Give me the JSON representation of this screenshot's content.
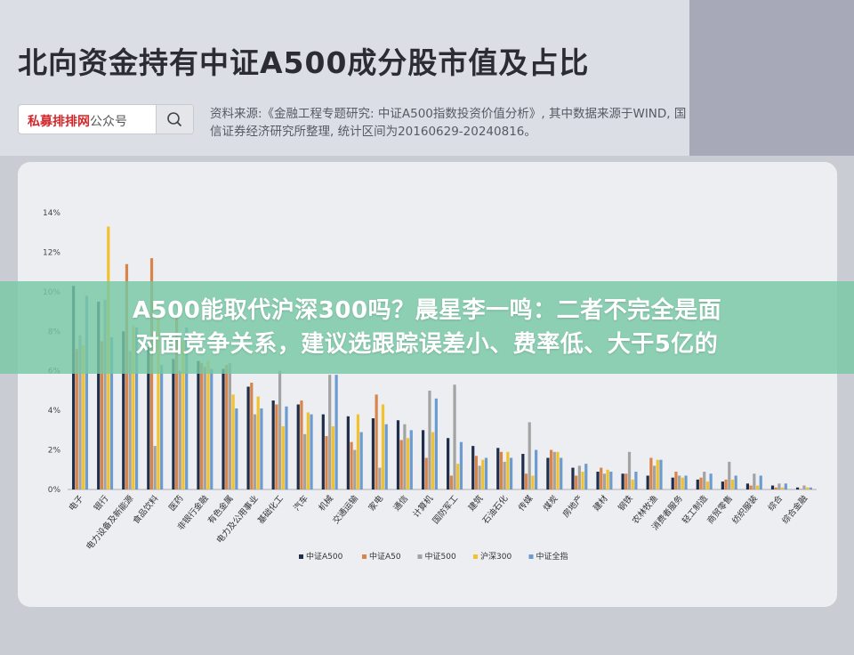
{
  "header": {
    "title": "北向资金持有中证A500成分股市值及占比",
    "search_brand": "私募排排网",
    "search_suffix": "公众号",
    "source": "资料来源:《金融工程专题研究: 中证A500指数投资价值分析》, 其中数据来源于WIND, 国信证券经济研究所整理, 统计区间为20160629-20240816。"
  },
  "banner": {
    "line1": "A500能取代沪深300吗？晨星李一鸣：二者不完全是面",
    "line2": "对面竞争关系，建议选跟踪误差小、费率低、大于5亿的"
  },
  "icons": {
    "search": "search-icon"
  },
  "colors": {
    "中证A500": "#1f2e4a",
    "中证A50": "#d9844a",
    "中证500": "#a3a3a3",
    "沪深300": "#f2c12e",
    "中证全指": "#6b9bd1"
  },
  "chart_data": {
    "type": "bar",
    "ylim": [
      0,
      14
    ],
    "yticks": [
      "0%",
      "2%",
      "4%",
      "6%",
      "8%",
      "10%",
      "12%",
      "14%"
    ],
    "grid": false,
    "legend": "bottom",
    "categories": [
      "电子",
      "银行",
      "电力设备及新能源",
      "食品饮料",
      "医药",
      "非银行金融",
      "有色金属",
      "电力及公用事业",
      "基础化工",
      "汽车",
      "机械",
      "交通运输",
      "家电",
      "通信",
      "计算机",
      "国防军工",
      "建筑",
      "石油石化",
      "传媒",
      "煤炭",
      "房地产",
      "建材",
      "钢铁",
      "农林牧渔",
      "消费者服务",
      "轻工制造",
      "商贸零售",
      "纺织服装",
      "综合",
      "综合金融"
    ],
    "series": [
      {
        "name": "中证A500",
        "values": [
          10.3,
          9.5,
          8.0,
          7.2,
          6.6,
          6.5,
          6.1,
          5.2,
          4.5,
          4.3,
          3.8,
          3.7,
          3.6,
          3.5,
          3.0,
          2.6,
          2.2,
          2.1,
          1.8,
          1.6,
          1.1,
          0.9,
          0.8,
          0.7,
          0.6,
          0.5,
          0.4,
          0.3,
          0.2,
          0.1
        ]
      },
      {
        "name": "中证A50",
        "values": [
          7.1,
          7.5,
          11.4,
          11.7,
          8.7,
          6.4,
          6.3,
          5.4,
          4.3,
          4.5,
          2.7,
          2.4,
          4.8,
          2.5,
          1.6,
          0.7,
          1.7,
          1.9,
          0.8,
          2.0,
          0.7,
          1.1,
          0.8,
          1.6,
          0.9,
          0.6,
          0.5,
          0.2,
          0.1,
          0.0
        ]
      },
      {
        "name": "中证500",
        "values": [
          7.8,
          9.6,
          7.0,
          2.2,
          6.0,
          6.2,
          6.4,
          3.8,
          6.0,
          2.8,
          5.8,
          2.0,
          1.1,
          3.3,
          5.0,
          5.3,
          1.2,
          1.4,
          3.4,
          1.9,
          1.2,
          0.8,
          1.9,
          1.2,
          0.7,
          0.9,
          1.4,
          0.8,
          0.3,
          0.2
        ]
      },
      {
        "name": "沪深300",
        "values": [
          7.3,
          13.3,
          8.3,
          8.7,
          7.5,
          6.5,
          4.8,
          4.7,
          3.2,
          3.9,
          3.2,
          3.8,
          4.3,
          2.6,
          2.9,
          1.3,
          1.5,
          1.9,
          0.7,
          1.9,
          0.9,
          1.0,
          0.5,
          1.5,
          0.6,
          0.4,
          0.5,
          0.2,
          0.1,
          0.1
        ]
      },
      {
        "name": "中证全指",
        "values": [
          9.8,
          7.7,
          8.2,
          6.3,
          8.2,
          6.1,
          4.1,
          4.1,
          4.2,
          3.8,
          5.8,
          2.9,
          3.3,
          3.0,
          4.6,
          2.4,
          1.6,
          1.6,
          2.0,
          1.6,
          1.3,
          0.9,
          0.9,
          1.5,
          0.7,
          0.8,
          0.7,
          0.7,
          0.3,
          0.1
        ]
      }
    ]
  }
}
